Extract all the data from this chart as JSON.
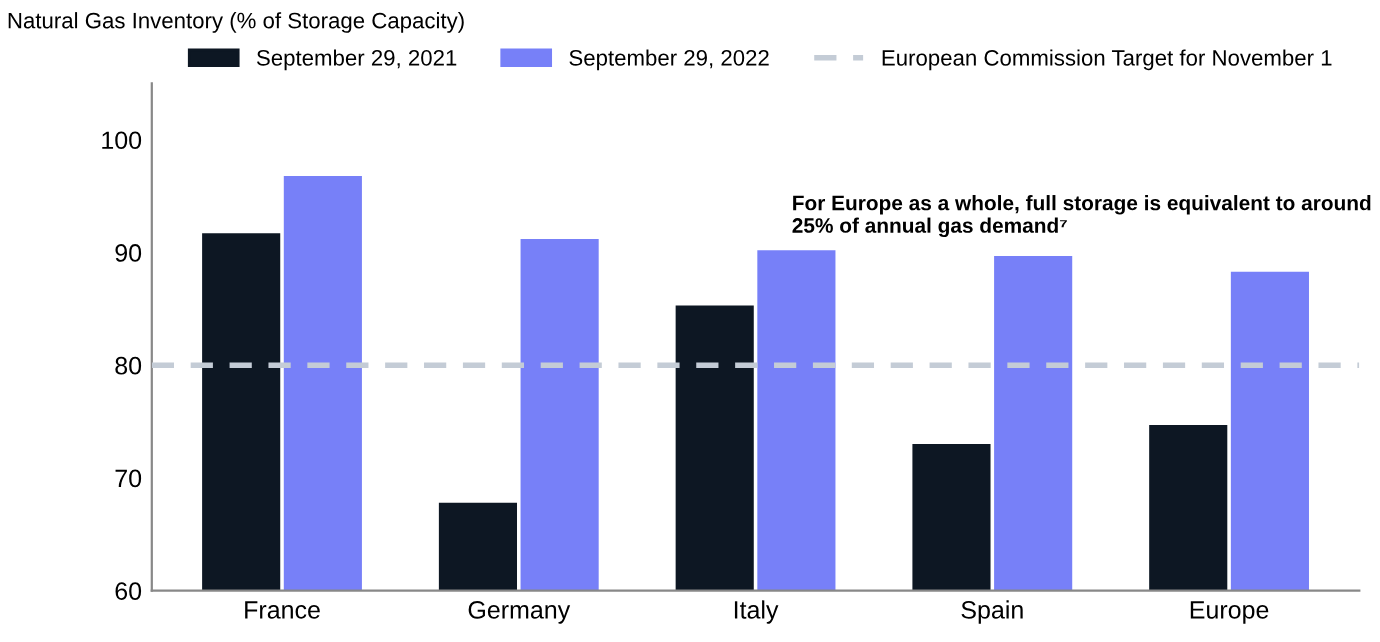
{
  "chart_data": {
    "type": "bar",
    "ylabel": "Natural Gas Inventory (% of Storage Capacity)",
    "categories": [
      "France",
      "Germany",
      "Italy",
      "Spain",
      "Europe"
    ],
    "series": [
      {
        "name": "September 29, 2021",
        "color": "#0d1723",
        "values": [
          91.7,
          67.8,
          85.3,
          73.0,
          74.7
        ]
      },
      {
        "name": "September 29, 2022",
        "color": "#7780f8",
        "values": [
          96.8,
          91.2,
          90.2,
          89.7,
          88.3
        ]
      }
    ],
    "ylim": [
      60,
      105
    ],
    "yticks": [
      60,
      70,
      80,
      90,
      100
    ],
    "grid": false,
    "legend": "top",
    "ref_lines": [
      {
        "axis": "y",
        "value": 80,
        "label": "European Commission Target for November 1",
        "color": "#c4ccd6",
        "line_style": "dashed"
      }
    ],
    "annotations": [
      "For Europe as a whole, full storage is equivalent to around 25% of annual gas demand⁷"
    ]
  }
}
